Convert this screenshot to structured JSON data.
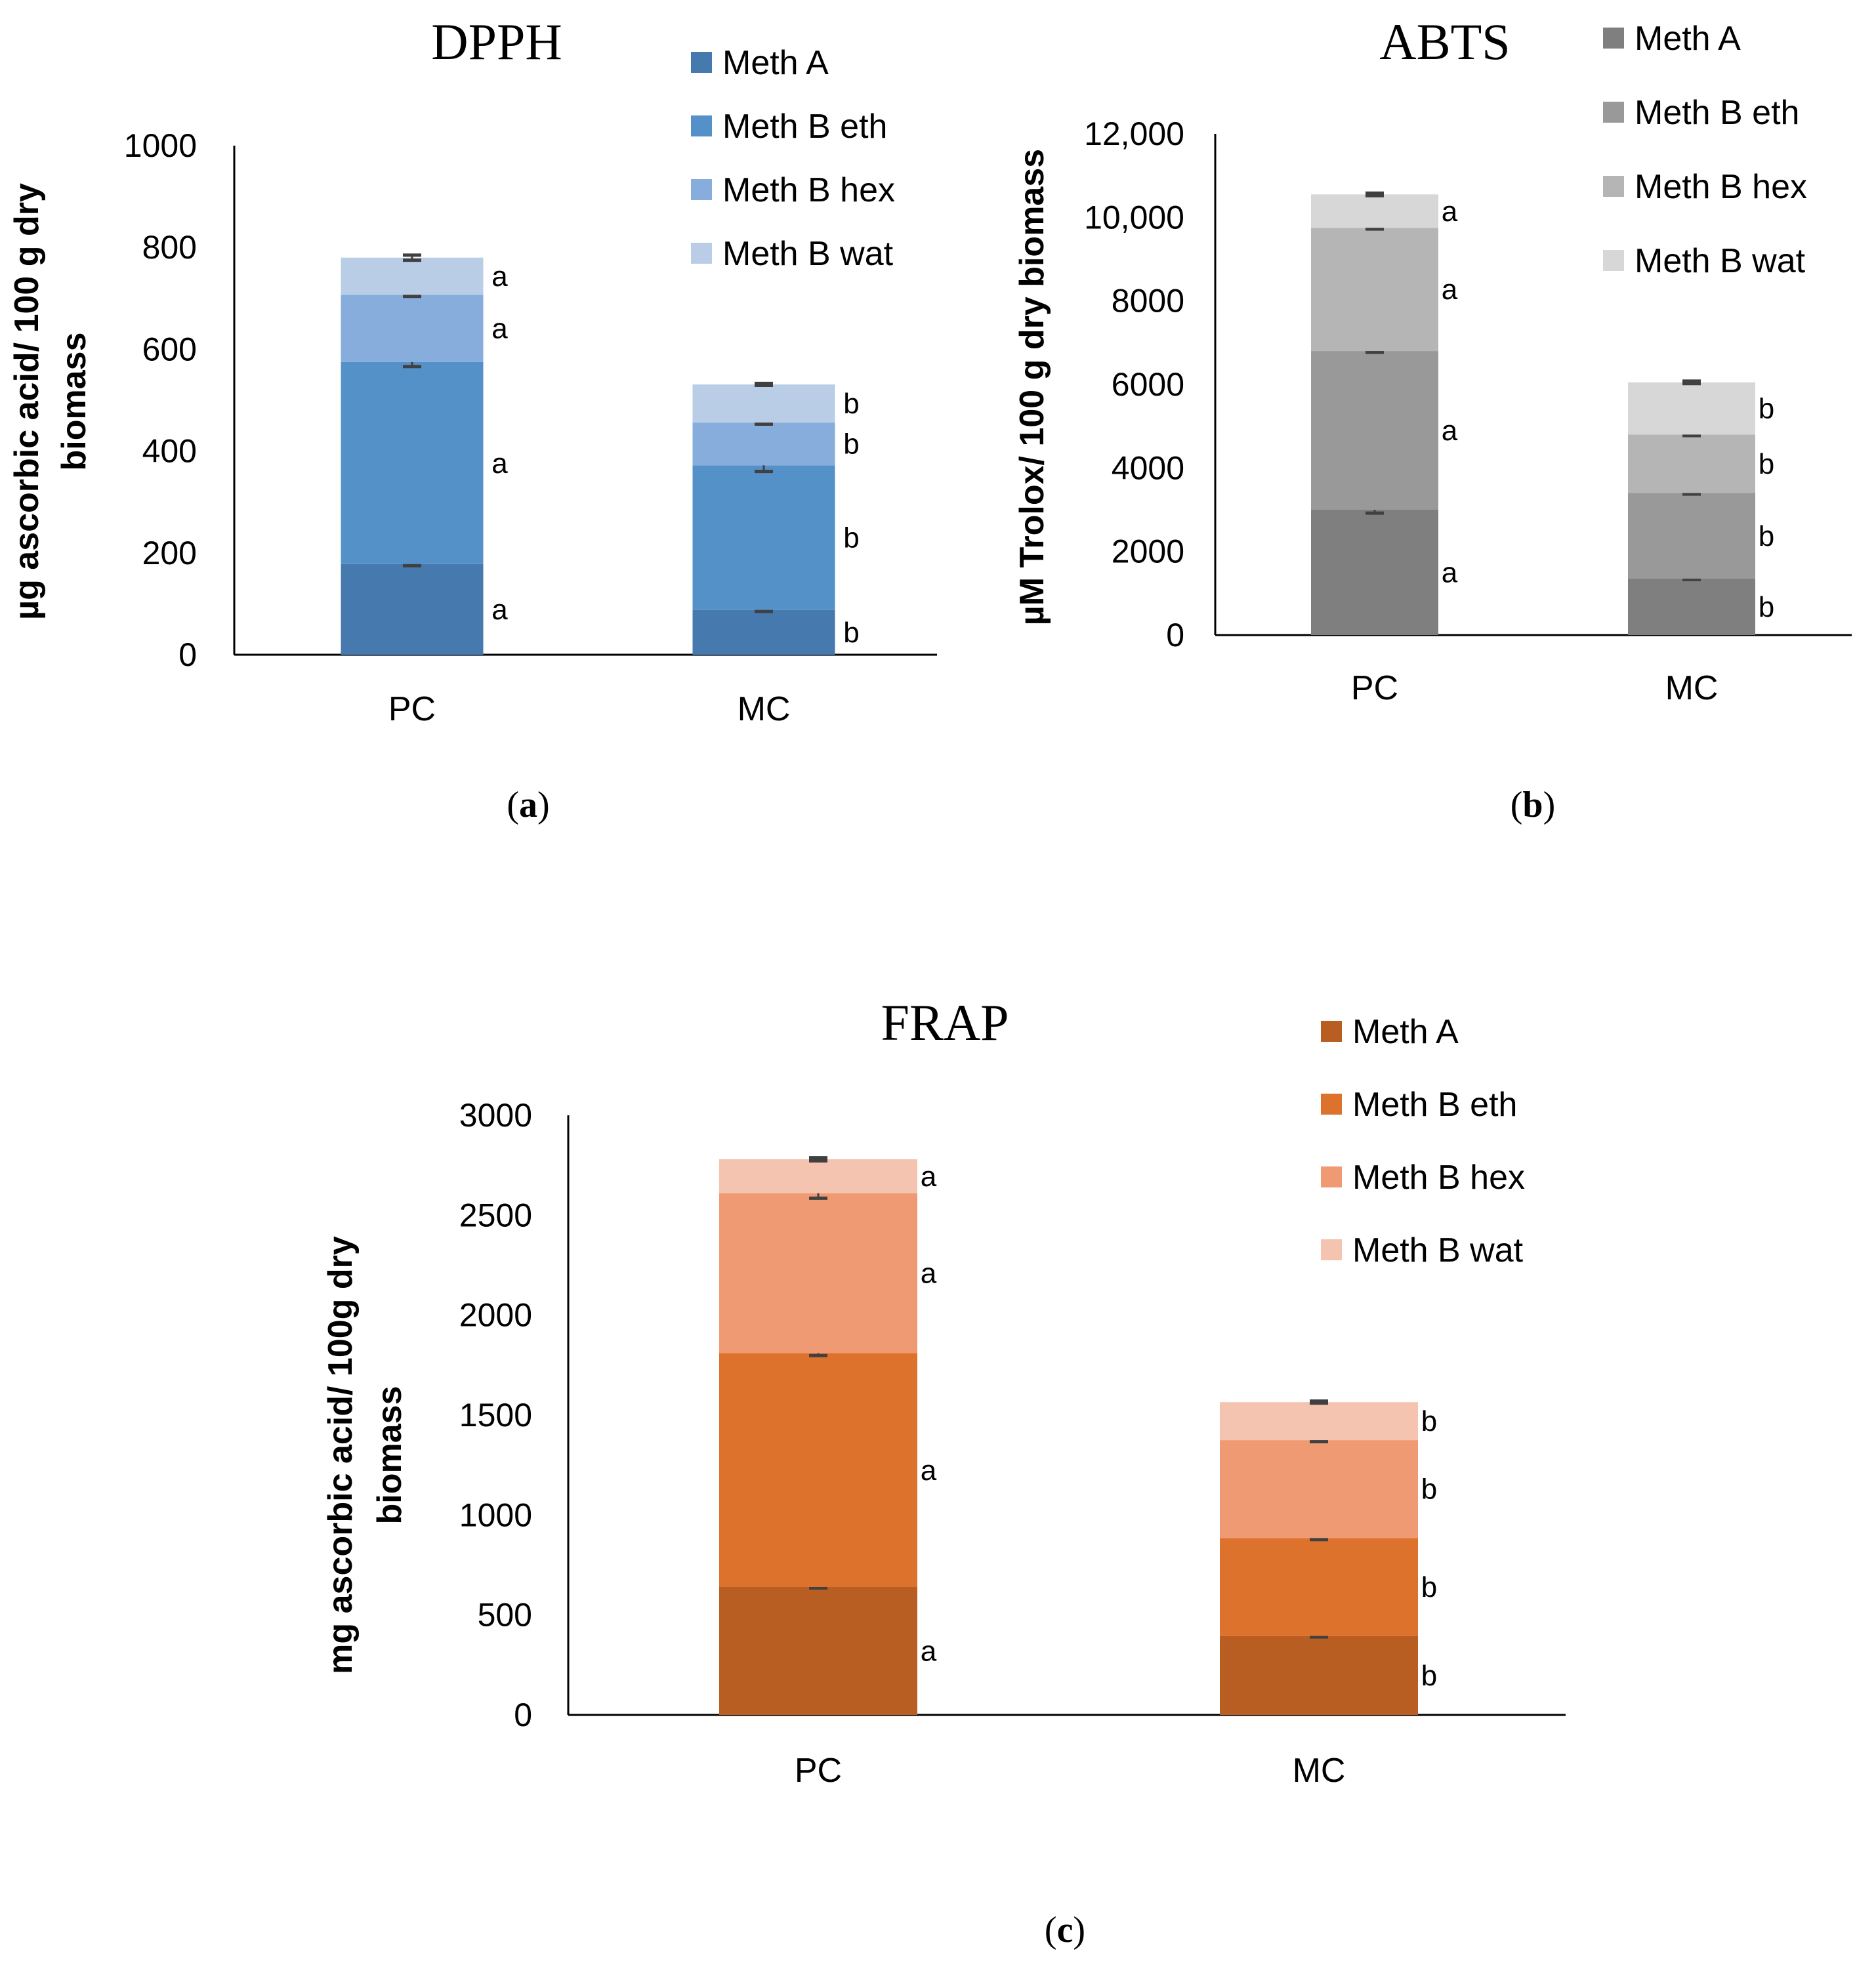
{
  "chart_data": [
    {
      "id": "dpph",
      "type": "bar",
      "stacked": true,
      "title": "DPPH",
      "panel_label": "a",
      "ylabel": "µg ascorbic acid/ 100 g dry biomass",
      "ylabel_lines": [
        "µg ascorbic acid/ 100 g dry",
        "biomass"
      ],
      "xlabel": "",
      "ylim": [
        0,
        1000
      ],
      "yticks": [
        0,
        200,
        400,
        600,
        800,
        1000
      ],
      "ytick_labels": [
        "0",
        "200",
        "400",
        "600",
        "800",
        "1000"
      ],
      "categories": [
        "PC",
        "MC"
      ],
      "legend_position": "top-right",
      "series": [
        {
          "name": "Meth A",
          "color": "#4679AE",
          "values": [
            178,
            88
          ],
          "errors": [
            3,
            3
          ],
          "letters": [
            "a",
            "b"
          ]
        },
        {
          "name": "Meth B eth",
          "color": "#5591C9",
          "values": [
            397,
            284
          ],
          "errors": [
            9,
            12
          ],
          "letters": [
            "a",
            "b"
          ]
        },
        {
          "name": "Meth B hex",
          "color": "#86ADDB",
          "values": [
            132,
            84
          ],
          "errors": [
            3,
            3
          ],
          "letters": [
            "a",
            "b"
          ]
        },
        {
          "name": "Meth B wat",
          "color": "#B9CDE7",
          "values": [
            73,
            75
          ],
          "errors": [
            5,
            2
          ],
          "letters": [
            "a",
            "b"
          ]
        }
      ]
    },
    {
      "id": "abts",
      "type": "bar",
      "stacked": true,
      "title": "ABTS",
      "panel_label": "b",
      "ylabel": "µM Trolox/ 100 g dry biomass",
      "ylabel_lines": [
        "µM Trolox/ 100 g dry biomass"
      ],
      "xlabel": "",
      "ylim": [
        0,
        12000
      ],
      "yticks": [
        0,
        2000,
        4000,
        6000,
        8000,
        10000,
        12000
      ],
      "ytick_labels": [
        "0",
        "2000",
        "4000",
        "6000",
        "8000",
        "10,000",
        "12,000"
      ],
      "categories": [
        "PC",
        "MC"
      ],
      "legend_position": "top-right",
      "series": [
        {
          "name": "Meth A",
          "color": "#7F7F7F",
          "values": [
            3000,
            1350
          ],
          "errors": [
            80,
            20
          ],
          "letters": [
            "a",
            "b"
          ]
        },
        {
          "name": "Meth B eth",
          "color": "#999999",
          "values": [
            3800,
            2050
          ],
          "errors": [
            30,
            25
          ],
          "letters": [
            "a",
            "b"
          ]
        },
        {
          "name": "Meth B hex",
          "color": "#B5B5B5",
          "values": [
            2950,
            1400
          ],
          "errors": [
            30,
            25
          ],
          "letters": [
            "a",
            "b"
          ]
        },
        {
          "name": "Meth B wat",
          "color": "#D7D7D7",
          "values": [
            800,
            1250
          ],
          "errors": [
            30,
            30
          ],
          "letters": [
            "a",
            "b"
          ]
        }
      ]
    },
    {
      "id": "frap",
      "type": "bar",
      "stacked": true,
      "title": "FRAP",
      "panel_label": "c",
      "ylabel": "mg ascorbic acid/ 100g dry biomass",
      "ylabel_lines": [
        "mg ascorbic acid/ 100g dry",
        "biomass"
      ],
      "xlabel": "",
      "ylim": [
        0,
        3000
      ],
      "yticks": [
        0,
        500,
        1000,
        1500,
        2000,
        2500,
        3000
      ],
      "ytick_labels": [
        "0",
        "500",
        "1000",
        "1500",
        "2000",
        "2500",
        "3000"
      ],
      "categories": [
        "PC",
        "MC"
      ],
      "legend_position": "top-right",
      "series": [
        {
          "name": "Meth A",
          "color": "#B95E22",
          "values": [
            640,
            395
          ],
          "errors": [
            5,
            5
          ],
          "letters": [
            "a",
            "b"
          ]
        },
        {
          "name": "Meth B eth",
          "color": "#DD722D",
          "values": [
            1170,
            490
          ],
          "errors": [
            12,
            8
          ],
          "letters": [
            "a",
            "b"
          ]
        },
        {
          "name": "Meth B hex",
          "color": "#F09A74",
          "values": [
            800,
            490
          ],
          "errors": [
            25,
            8
          ],
          "letters": [
            "a",
            "b"
          ]
        },
        {
          "name": "Meth B wat",
          "color": "#F5C4B0",
          "values": [
            170,
            190
          ],
          "errors": [
            8,
            5
          ],
          "letters": [
            "a",
            "b"
          ]
        }
      ]
    }
  ]
}
